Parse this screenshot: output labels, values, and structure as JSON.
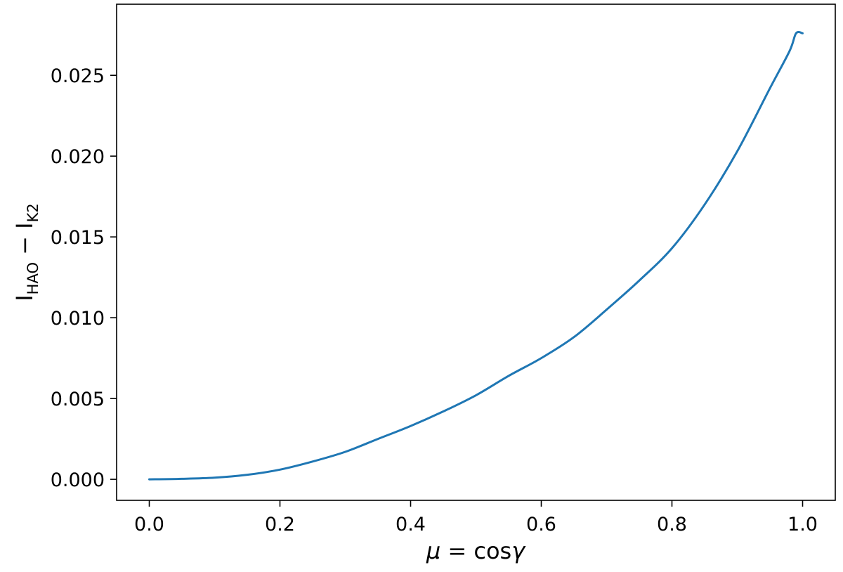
{
  "chart_data": {
    "type": "line",
    "title": "",
    "xlabel": {
      "prefix": "μ",
      "operator": " = ",
      "func": "cos",
      "var": "γ"
    },
    "ylabel": {
      "i1": "I",
      "sub1": "HAO",
      "operator": " − ",
      "i2": "I",
      "sub2": "K2"
    },
    "xlim": [
      -0.05,
      1.05
    ],
    "ylim": [
      -0.0013,
      0.0294
    ],
    "xticks": [
      0.0,
      0.2,
      0.4,
      0.6,
      0.8,
      1.0
    ],
    "xtick_labels": [
      "0.0",
      "0.2",
      "0.4",
      "0.6",
      "0.8",
      "1.0"
    ],
    "yticks": [
      0.0,
      0.005,
      0.01,
      0.015,
      0.02,
      0.025
    ],
    "ytick_labels": [
      "0.000",
      "0.005",
      "0.010",
      "0.015",
      "0.020",
      "0.025"
    ],
    "grid": false,
    "series": [
      {
        "color": "#1f77b4",
        "x": [
          0.0,
          0.05,
          0.1,
          0.15,
          0.2,
          0.25,
          0.3,
          0.35,
          0.4,
          0.45,
          0.5,
          0.55,
          0.6,
          0.65,
          0.7,
          0.75,
          0.8,
          0.85,
          0.9,
          0.95,
          0.98,
          0.99,
          1.0
        ],
        "y": [
          0.0,
          3e-05,
          0.0001,
          0.00028,
          0.0006,
          0.0011,
          0.0017,
          0.0025,
          0.0033,
          0.0042,
          0.0052,
          0.0064,
          0.0075,
          0.0088,
          0.0105,
          0.0123,
          0.0143,
          0.017,
          0.0203,
          0.0242,
          0.0265,
          0.0276,
          0.0276
        ]
      }
    ]
  }
}
